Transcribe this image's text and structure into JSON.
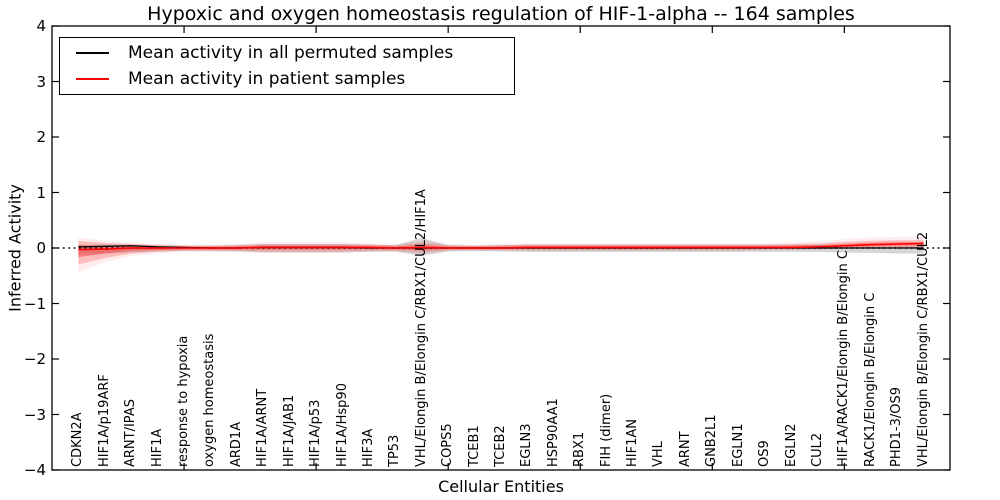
{
  "legend": {
    "items": [
      {
        "label": "Mean activity in all permuted samples",
        "color": "#000000"
      },
      {
        "label": "Mean activity in patient samples",
        "color": "#ff0000"
      }
    ]
  },
  "chart_data": {
    "type": "line",
    "title": "Hypoxic and oxygen homeostasis regulation of HIF-1-alpha -- 164 samples",
    "xlabel": "Cellular Entities",
    "ylabel": "Inferred Activity",
    "ylim": [
      -4,
      4
    ],
    "yticks": [
      -4,
      -3,
      -2,
      -1,
      0,
      1,
      2,
      3,
      4
    ],
    "xlim": [
      0,
      34
    ],
    "xticks": [
      5,
      10,
      15,
      20,
      25,
      30
    ],
    "grid": false,
    "legend_position": "upper-left",
    "zero_line": {
      "style": "dotted",
      "color": "#000000"
    },
    "frame_color": "#000000",
    "categories": [
      "CDKN2A",
      "HIF1A/p19ARF",
      "ARNT/IPAS",
      "HIF1A",
      "response to hypoxia",
      "oxygen homeostasis",
      "ARD1A",
      "HIF1A/ARNT",
      "HIF1A/JAB1",
      "HIF1A/p53",
      "HIF1A/Hsp90",
      "HIF3A",
      "TP53",
      "VHL/Elongin B/Elongin C/RBX1/CUL2/HIF1A",
      "COPS5",
      "TCEB1",
      "TCEB2",
      "EGLN3",
      "HSP90AA1",
      "RBX1",
      "FIH (dimer)",
      "HIF1AN",
      "VHL",
      "ARNT",
      "GNB2L1",
      "EGLN1",
      "OS9",
      "EGLN2",
      "CUL2",
      "HIF1A/RACK1/Elongin B/Elongin C",
      "RACK1/Elongin B/Elongin C",
      "PHD1-3/OS9",
      "VHL/Elongin B/Elongin C/RBX1/CUL2"
    ],
    "series": [
      {
        "name": "Mean activity in all permuted samples",
        "color": "#000000",
        "values": [
          0.02,
          0.03,
          0.04,
          0.02,
          0.01,
          0,
          0,
          0.01,
          0.01,
          0.01,
          0.01,
          0,
          0,
          0,
          0,
          0,
          0,
          0,
          0,
          0,
          0,
          0,
          0,
          0,
          0,
          0,
          0,
          0,
          0,
          0,
          0,
          0,
          0
        ]
      },
      {
        "name": "Mean activity in patient samples",
        "color": "#ff0000",
        "values": [
          -0.03,
          -0.02,
          0,
          0,
          0,
          0,
          0,
          0.01,
          0.01,
          0.01,
          0.01,
          0.01,
          0,
          0.01,
          0,
          0,
          0,
          0.01,
          0.01,
          0.01,
          0.01,
          0.01,
          0.01,
          0.01,
          0.01,
          0.01,
          0.01,
          0.01,
          0.02,
          0.04,
          0.06,
          0.07,
          0.08
        ]
      }
    ],
    "bands": [
      {
        "name": "permuted-ci",
        "color": "#999999",
        "opacity": 0.4,
        "upper": [
          0.06,
          0.06,
          0.06,
          0.05,
          0.04,
          0.04,
          0.05,
          0.07,
          0.07,
          0.07,
          0.07,
          0.06,
          0.05,
          0.18,
          0.05,
          0.04,
          0.05,
          0.06,
          0.06,
          0.06,
          0.06,
          0.06,
          0.06,
          0.06,
          0.06,
          0.06,
          0.06,
          0.06,
          0.06,
          0.05,
          0.04,
          0.04,
          0.04
        ],
        "lower": [
          -0.12,
          -0.1,
          -0.08,
          -0.06,
          -0.05,
          -0.05,
          -0.06,
          -0.08,
          -0.08,
          -0.08,
          -0.08,
          -0.07,
          -0.06,
          -0.14,
          -0.06,
          -0.05,
          -0.06,
          -0.07,
          -0.07,
          -0.07,
          -0.07,
          -0.07,
          -0.07,
          -0.07,
          -0.07,
          -0.07,
          -0.07,
          -0.07,
          -0.07,
          -0.08,
          -0.09,
          -0.1,
          -0.1
        ]
      },
      {
        "name": "patient-ci",
        "color": "#ff4d4d",
        "opacity": 0.3,
        "upper": [
          0.13,
          0.09,
          0.07,
          0.05,
          0.04,
          0.04,
          0.05,
          0.07,
          0.07,
          0.07,
          0.07,
          0.06,
          0.05,
          0.1,
          0.05,
          0.04,
          0.05,
          0.06,
          0.06,
          0.06,
          0.06,
          0.06,
          0.06,
          0.06,
          0.06,
          0.06,
          0.06,
          0.07,
          0.08,
          0.11,
          0.13,
          0.14,
          0.14
        ],
        "lower": [
          -0.3,
          -0.18,
          -0.1,
          -0.07,
          -0.05,
          -0.05,
          -0.05,
          -0.06,
          -0.06,
          -0.06,
          -0.06,
          -0.05,
          -0.05,
          -0.08,
          -0.04,
          -0.04,
          -0.04,
          -0.04,
          -0.04,
          -0.04,
          -0.04,
          -0.04,
          -0.04,
          -0.04,
          -0.04,
          -0.04,
          -0.03,
          -0.03,
          -0.02,
          -0.01,
          0,
          0.01,
          0.01
        ]
      }
    ]
  }
}
